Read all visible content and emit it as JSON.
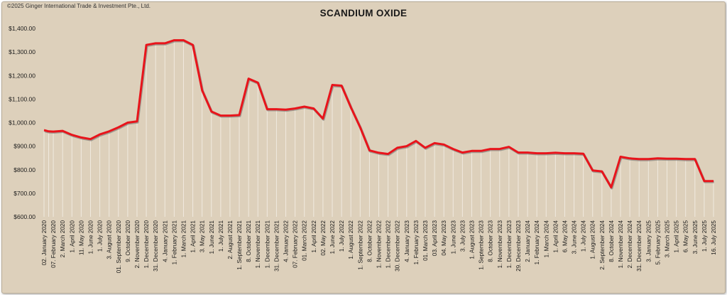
{
  "copyright": "©2025 Ginger International Trade & Investment Pte., Ltd.",
  "chart_data": {
    "type": "line",
    "title": "SCANDIUM OXIDE",
    "xlabel": "",
    "ylabel": "",
    "ylim": [
      600,
      1400
    ],
    "yticks": [
      "$600.00",
      "$700.00",
      "$800.00",
      "$900.00",
      "$1,000.00",
      "$1,100.00",
      "$1,200.00",
      "$1,300.00",
      "$1,400.00"
    ],
    "grid": false,
    "legend": "none",
    "line_color": "#e8141b",
    "categories": [
      "02. January 2020",
      "07. February 2020",
      "2. March 2020",
      "1. April 2020",
      "11. May 2020",
      "1. June 2020",
      "1. July 2020",
      "3. August 2020",
      "01. September 2020",
      "9. October 2020",
      "2. November 2020",
      "1. December 2020",
      "31. December 2020",
      "4. January 2021",
      "1. February 2021",
      "1. March 2021",
      "1. April 2021",
      "3. May 2021",
      "1. June 2021",
      "1. July 2021",
      "2. August 2021",
      "1. September 2021",
      "8. October 2021",
      "1. November 2021",
      "1. December 2021",
      "31. December 2021",
      "4. January 2022",
      "07. February 2022",
      "01. March 2022",
      "1. April 2022",
      "02. May 2022",
      "1. June 2022",
      "1. July 2022",
      "1. August 2022",
      "1. September 2022",
      "8. October 2022",
      "1. November 2022",
      "1. December 2022",
      "30. December 2022",
      "4. January 2023",
      "1. February 2023",
      "01. March 2023",
      "03. April 2023",
      "04. May 2023",
      "1. June 2023",
      "3. July 2023",
      "1. August 2023",
      "1. September 2023",
      "8. October 2023",
      "1. November 2023",
      "1. December 2023",
      "29. December 2023",
      "2. January 2024",
      "1. February 2024",
      "1. March 2024",
      "1. April 2024",
      "6. May 2024",
      "3. June 2024",
      "1. July 2024",
      "1. August 2024",
      "2. September 2024",
      "8. October 2024",
      "1. November 2024",
      "2. December 2024",
      "31. December 2024",
      "3. January 2025",
      "5. February 2025",
      "3. March 2025",
      "1. April 2025",
      "6. May 2025",
      "3. June 2025",
      "1. July 2025",
      "16. July 2025"
    ],
    "x_extra": [
      {
        "t": 0.0,
        "v": 968
      },
      {
        "t": 0.5,
        "v": 963
      },
      {
        "t": 1.0,
        "v": 962
      },
      {
        "t": 2.0,
        "v": 965
      },
      {
        "t": 3.0,
        "v": 948
      },
      {
        "t": 4.0,
        "v": 937
      },
      {
        "t": 5.0,
        "v": 930
      },
      {
        "t": 6.0,
        "v": 950
      },
      {
        "t": 7.0,
        "v": 963
      },
      {
        "t": 8.0,
        "v": 980
      },
      {
        "t": 9.0,
        "v": 1000
      },
      {
        "t": 10.0,
        "v": 1005
      },
      {
        "t": 11.0,
        "v": 1330
      },
      {
        "t": 12.0,
        "v": 1337
      },
      {
        "t": 13.0,
        "v": 1337
      },
      {
        "t": 14.0,
        "v": 1350
      },
      {
        "t": 15.0,
        "v": 1350
      },
      {
        "t": 16.0,
        "v": 1330
      },
      {
        "t": 17.0,
        "v": 1137
      },
      {
        "t": 18.0,
        "v": 1047
      },
      {
        "t": 19.0,
        "v": 1030
      },
      {
        "t": 20.0,
        "v": 1030
      },
      {
        "t": 21.0,
        "v": 1032
      },
      {
        "t": 22.0,
        "v": 1187
      },
      {
        "t": 23.0,
        "v": 1170
      },
      {
        "t": 24.0,
        "v": 1057
      },
      {
        "t": 25.0,
        "v": 1057
      },
      {
        "t": 26.0,
        "v": 1055
      },
      {
        "t": 27.0,
        "v": 1060
      },
      {
        "t": 28.0,
        "v": 1068
      },
      {
        "t": 29.0,
        "v": 1060
      },
      {
        "t": 30.0,
        "v": 1017
      },
      {
        "t": 31.0,
        "v": 1160
      },
      {
        "t": 32.0,
        "v": 1157
      },
      {
        "t": 33.0,
        "v": 1065
      },
      {
        "t": 34.0,
        "v": 980
      },
      {
        "t": 35.0,
        "v": 882
      },
      {
        "t": 36.0,
        "v": 872
      },
      {
        "t": 37.0,
        "v": 867
      },
      {
        "t": 38.0,
        "v": 893
      },
      {
        "t": 39.0,
        "v": 900
      },
      {
        "t": 40.0,
        "v": 922
      },
      {
        "t": 41.0,
        "v": 893
      },
      {
        "t": 42.0,
        "v": 913
      },
      {
        "t": 43.0,
        "v": 907
      },
      {
        "t": 44.0,
        "v": 888
      },
      {
        "t": 45.0,
        "v": 873
      },
      {
        "t": 46.0,
        "v": 880
      },
      {
        "t": 47.0,
        "v": 880
      },
      {
        "t": 48.0,
        "v": 888
      },
      {
        "t": 49.0,
        "v": 888
      },
      {
        "t": 50.0,
        "v": 897
      },
      {
        "t": 51.0,
        "v": 873
      },
      {
        "t": 52.0,
        "v": 873
      },
      {
        "t": 53.0,
        "v": 870
      },
      {
        "t": 54.0,
        "v": 870
      },
      {
        "t": 55.0,
        "v": 872
      },
      {
        "t": 56.0,
        "v": 870
      },
      {
        "t": 57.0,
        "v": 870
      },
      {
        "t": 58.0,
        "v": 868
      },
      {
        "t": 59.0,
        "v": 797
      },
      {
        "t": 60.0,
        "v": 793
      },
      {
        "t": 61.0,
        "v": 725
      },
      {
        "t": 62.0,
        "v": 855
      },
      {
        "t": 63.0,
        "v": 848
      },
      {
        "t": 64.0,
        "v": 845
      },
      {
        "t": 65.0,
        "v": 845
      },
      {
        "t": 66.0,
        "v": 848
      },
      {
        "t": 67.0,
        "v": 847
      },
      {
        "t": 68.0,
        "v": 847
      },
      {
        "t": 69.0,
        "v": 845
      },
      {
        "t": 70.0,
        "v": 845
      },
      {
        "t": 71.0,
        "v": 752
      },
      {
        "t": 72.0,
        "v": 752
      }
    ]
  }
}
